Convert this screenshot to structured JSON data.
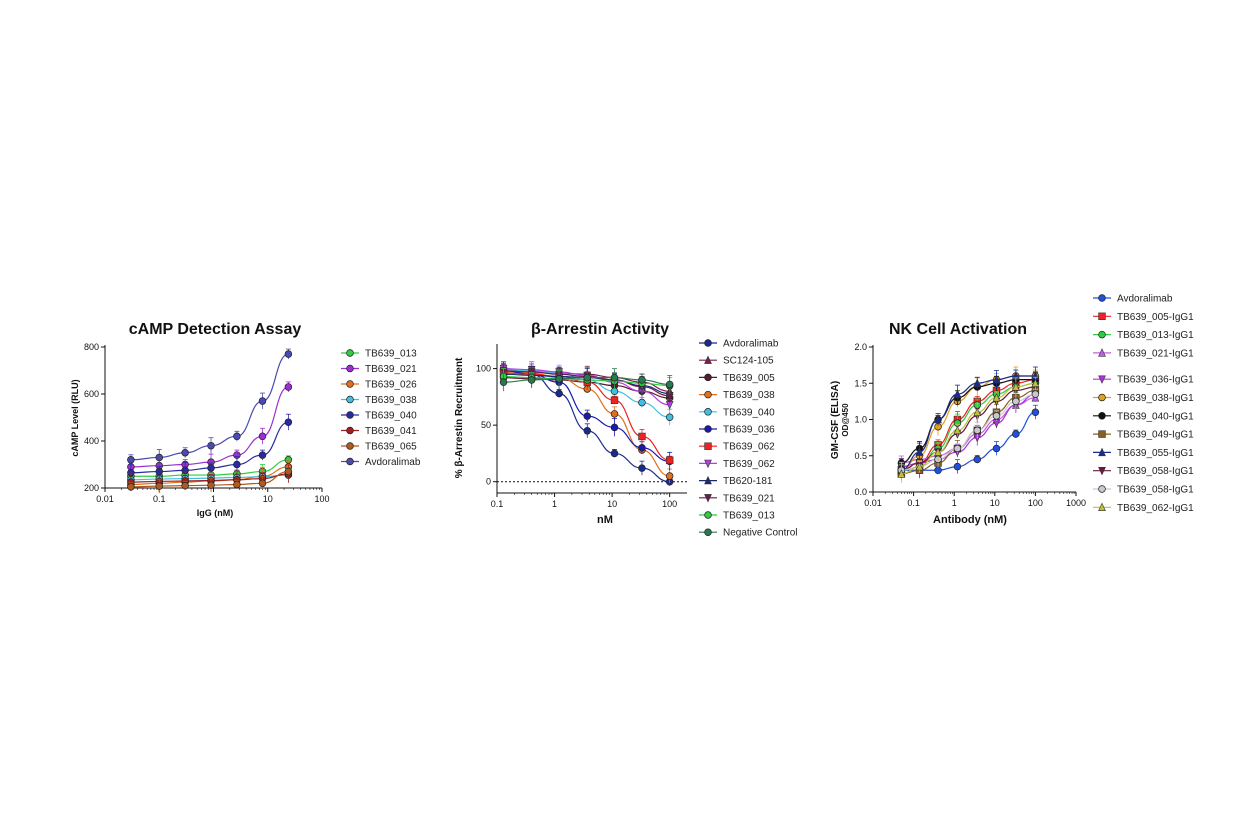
{
  "chart_data": [
    {
      "type": "scatter",
      "title": "cAMP Detection Assay",
      "xlabel": "IgG (nM)",
      "ylabel": "cAMP Level (RLU)",
      "xscale": "log",
      "xlim": [
        0.01,
        100
      ],
      "ylim": [
        200,
        800
      ],
      "xticks": [
        "0.01",
        "0.1",
        "1",
        "10",
        "100"
      ],
      "yticks": [
        "200",
        "400",
        "600",
        "800"
      ],
      "legend": "right",
      "x": [
        0.03,
        0.1,
        0.3,
        0.9,
        2.7,
        8,
        24
      ],
      "series": [
        {
          "name": "TB639_013",
          "color": "#2ecc40",
          "values": [
            250,
            250,
            255,
            255,
            260,
            270,
            320
          ]
        },
        {
          "name": "TB639_021",
          "color": "#9b30d0",
          "values": [
            290,
            295,
            300,
            310,
            340,
            420,
            630
          ]
        },
        {
          "name": "TB639_026",
          "color": "#e07020",
          "values": [
            215,
            220,
            225,
            230,
            235,
            250,
            290
          ]
        },
        {
          "name": "TB639_038",
          "color": "#40c0e0",
          "values": [
            235,
            238,
            240,
            242,
            245,
            248,
            255
          ]
        },
        {
          "name": "TB639_040",
          "color": "#2a2aa0",
          "values": [
            265,
            270,
            275,
            285,
            300,
            340,
            480
          ]
        },
        {
          "name": "TB639_041",
          "color": "#a02020",
          "values": [
            225,
            228,
            230,
            232,
            235,
            240,
            260
          ]
        },
        {
          "name": "TB639_065",
          "color": "#b05a20",
          "values": [
            205,
            208,
            210,
            212,
            215,
            220,
            270
          ]
        },
        {
          "name": "Avdoralimab",
          "color": "#4a4ab0",
          "values": [
            320,
            330,
            350,
            380,
            420,
            570,
            770
          ]
        }
      ]
    },
    {
      "type": "scatter",
      "title": "β-Arrestin Activity",
      "xlabel": "nM",
      "ylabel": "% β-Arrestin Recruitment",
      "xscale": "log",
      "xlim": [
        0.1,
        200
      ],
      "ylim": [
        -10,
        120
      ],
      "xticks": [
        "0.1",
        "1",
        "10",
        "100"
      ],
      "yticks": [
        "0",
        "50",
        "100"
      ],
      "baseline": 0,
      "legend": "right",
      "x": [
        0.13,
        0.4,
        1.2,
        3.7,
        11,
        33,
        100
      ],
      "series": [
        {
          "name": "Avdoralimab",
          "color": "#1a2a90",
          "values": [
            100,
            95,
            78,
            45,
            25,
            12,
            0
          ]
        },
        {
          "name": "SC124-105",
          "color": "#7a2050",
          "values": [
            98,
            97,
            96,
            95,
            92,
            88,
            80
          ]
        },
        {
          "name": "TB639_005",
          "color": "#5a1a30",
          "values": [
            92,
            91,
            90,
            88,
            85,
            80,
            74
          ]
        },
        {
          "name": "TB639_038",
          "color": "#e07020",
          "values": [
            97,
            96,
            92,
            82,
            60,
            28,
            5
          ]
        },
        {
          "name": "TB639_040",
          "color": "#40c0e0",
          "values": [
            99,
            98,
            96,
            90,
            80,
            70,
            57
          ]
        },
        {
          "name": "TB639_036",
          "color": "#1a1ab0",
          "values": [
            98,
            95,
            88,
            58,
            48,
            30,
            18
          ]
        },
        {
          "name": "TB639_062",
          "color": "#ee2222",
          "values": [
            96,
            95,
            93,
            88,
            72,
            40,
            19
          ]
        },
        {
          "name": "TB639_062",
          "color": "#b040e0",
          "values": [
            100,
            99,
            97,
            94,
            88,
            80,
            68
          ]
        },
        {
          "name": "TB620-181",
          "color": "#1a2a70",
          "values": [
            95,
            94,
            93,
            92,
            90,
            85,
            78
          ]
        },
        {
          "name": "TB639_021",
          "color": "#6a1a50",
          "values": [
            98,
            97,
            95,
            93,
            90,
            84,
            76
          ]
        },
        {
          "name": "TB639_013",
          "color": "#2ecc40",
          "values": [
            93,
            92,
            91,
            90,
            89,
            87,
            85
          ]
        },
        {
          "name": "Negative Control",
          "color": "#2a7a50",
          "values": [
            88,
            90,
            91,
            92,
            92,
            90,
            86
          ]
        }
      ]
    },
    {
      "type": "scatter",
      "title": "NK Cell Activation",
      "xlabel": "Antibody (nM)",
      "ylabel": "GM-CSF (ELISA)",
      "ylabel2": "OD@450",
      "xscale": "log",
      "xlim": [
        0.01,
        1000
      ],
      "ylim": [
        0,
        2.0
      ],
      "xticks": [
        "0.01",
        "0.1",
        "1",
        "10",
        "100",
        "1000"
      ],
      "yticks": [
        "0.0",
        "0.5",
        "1.0",
        "1.5",
        "2.0"
      ],
      "legend": "right",
      "x": [
        0.05,
        0.14,
        0.4,
        1.2,
        3.7,
        11,
        33,
        100
      ],
      "series": [
        {
          "name": "Avdoralimab",
          "color": "#2050e0",
          "values": [
            0.3,
            0.3,
            0.3,
            0.35,
            0.45,
            0.6,
            0.8,
            1.1
          ]
        },
        {
          "name": "TB639_005-IgG1",
          "color": "#ee2222",
          "values": [
            0.3,
            0.4,
            0.65,
            1.0,
            1.25,
            1.4,
            1.5,
            1.55
          ]
        },
        {
          "name": "TB639_013-IgG1",
          "color": "#2ecc40",
          "values": [
            0.25,
            0.35,
            0.6,
            0.95,
            1.2,
            1.35,
            1.45,
            1.5
          ]
        },
        {
          "name": "TB639_021-IgG1",
          "color": "#c060e0",
          "values": [
            0.4,
            0.45,
            0.5,
            0.6,
            0.8,
            1.0,
            1.2,
            1.3
          ]
        },
        {
          "name": "TB639_036-IgG1",
          "color": "#b030e0",
          "values": [
            0.35,
            0.4,
            0.45,
            0.55,
            0.75,
            0.95,
            1.2,
            1.35
          ]
        },
        {
          "name": "TB639_038-IgG1",
          "color": "#e0a020",
          "values": [
            0.3,
            0.5,
            0.9,
            1.25,
            1.45,
            1.55,
            1.6,
            1.6
          ]
        },
        {
          "name": "TB639_040-IgG1",
          "color": "#111111",
          "values": [
            0.4,
            0.6,
            1.0,
            1.3,
            1.45,
            1.5,
            1.55,
            1.55
          ]
        },
        {
          "name": "TB639_049-IgG1",
          "color": "#8a6020",
          "values": [
            0.25,
            0.3,
            0.4,
            0.6,
            0.85,
            1.1,
            1.3,
            1.4
          ]
        },
        {
          "name": "TB639_055-IgG1",
          "color": "#1a2a90",
          "values": [
            0.3,
            0.55,
            1.0,
            1.35,
            1.5,
            1.55,
            1.6,
            1.6
          ]
        },
        {
          "name": "TB639_058-IgG1",
          "color": "#6a1a40",
          "values": [
            0.3,
            0.4,
            0.55,
            0.8,
            1.05,
            1.25,
            1.4,
            1.45
          ]
        },
        {
          "name": "TB639_058-IgG1",
          "color": "#c8c8d0",
          "values": [
            0.3,
            0.35,
            0.45,
            0.6,
            0.85,
            1.05,
            1.25,
            1.35
          ]
        },
        {
          "name": "TB639_062-IgG1",
          "color": "#c0c040",
          "values": [
            0.25,
            0.35,
            0.55,
            0.85,
            1.1,
            1.3,
            1.45,
            1.5
          ]
        }
      ]
    }
  ]
}
